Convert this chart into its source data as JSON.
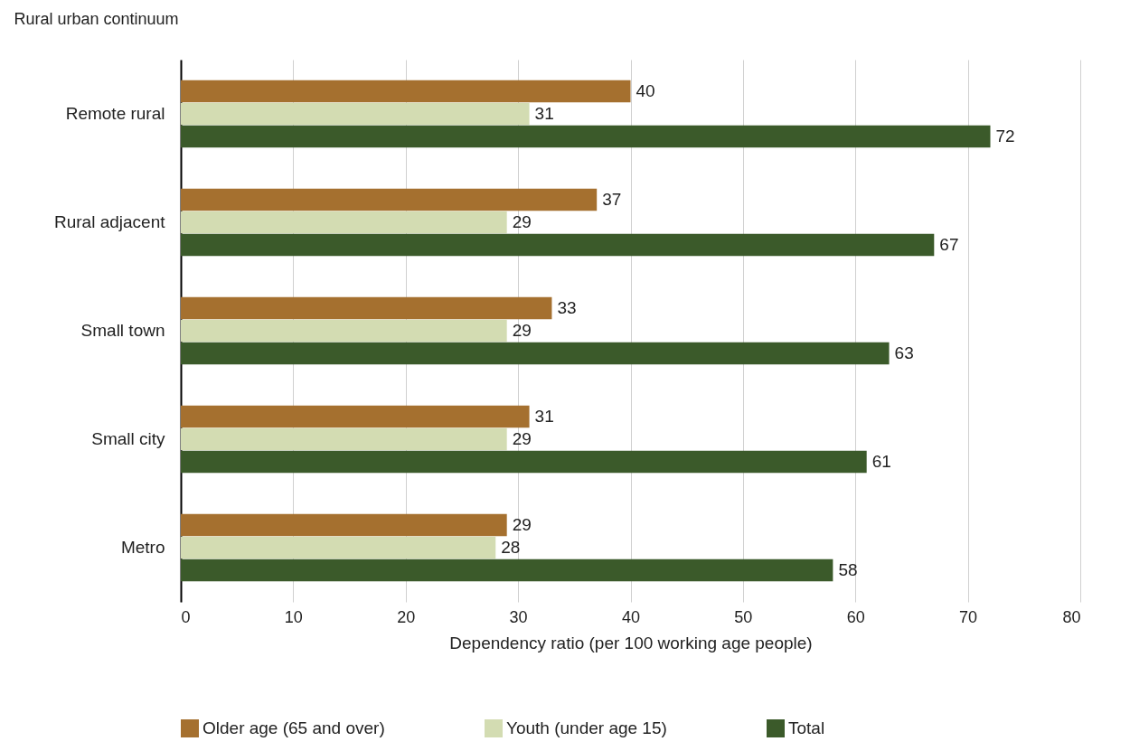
{
  "chart_data": {
    "type": "bar",
    "orientation": "horizontal",
    "ylabel": "Rural urban continuum",
    "xlabel": "Dependency ratio (per 100 working age people)",
    "categories": [
      "Remote rural",
      "Rural adjacent",
      "Small town",
      "Small city",
      "Metro"
    ],
    "series": [
      {
        "name": "Older age (65 and over)",
        "color": "#a5702f",
        "values": [
          40,
          37,
          33,
          31,
          29
        ]
      },
      {
        "name": "Youth (under age 15)",
        "color": "#d3dcb2",
        "values": [
          31,
          29,
          29,
          29,
          28
        ]
      },
      {
        "name": "Total",
        "color": "#3b5a2a",
        "values": [
          72,
          67,
          63,
          61,
          58
        ]
      }
    ],
    "xlim": [
      0,
      80
    ],
    "xticks": [
      0,
      10,
      20,
      30,
      40,
      50,
      60,
      70,
      80
    ],
    "grid": "x",
    "legend": "bottom",
    "data_labels": true
  }
}
